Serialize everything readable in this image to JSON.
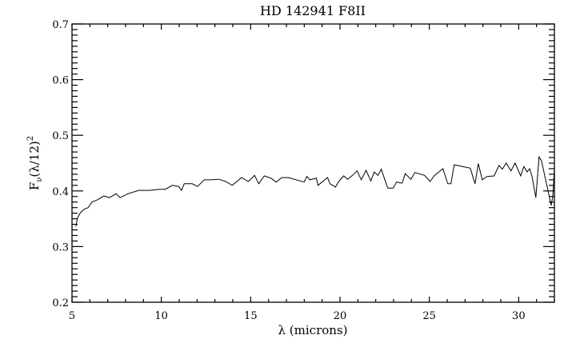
{
  "chart_data": {
    "type": "line",
    "title": "HD 142941 F8II",
    "xlabel": "λ (microns)",
    "ylabel": "Fν(λ/12)²",
    "ylabel_parts": {
      "base": "F",
      "sub": "ν",
      "mid": "(λ/12)",
      "sup": "2"
    },
    "xlim": [
      5,
      32
    ],
    "ylim": [
      0.2,
      0.7
    ],
    "xticks": [
      5,
      10,
      15,
      20,
      25,
      30
    ],
    "xtick_labels": [
      "5",
      "10",
      "15",
      "20",
      "25",
      "30"
    ],
    "yticks": [
      0.2,
      0.3,
      0.4,
      0.5,
      0.6,
      0.7
    ],
    "ytick_labels": [
      "0.2",
      "0.3",
      "0.4",
      "0.5",
      "0.6",
      "0.7"
    ],
    "grid": false,
    "line_color": "#000000",
    "x": [
      5.22,
      5.3,
      5.45,
      5.67,
      5.9,
      6.12,
      6.42,
      6.79,
      7.09,
      7.47,
      7.69,
      8.14,
      8.73,
      9.34,
      9.93,
      10.23,
      10.61,
      10.97,
      11.13,
      11.28,
      11.73,
      12.03,
      12.4,
      12.76,
      13.22,
      13.6,
      13.97,
      14.49,
      14.87,
      15.22,
      15.45,
      15.76,
      16.13,
      16.43,
      16.73,
      17.11,
      18.0,
      18.14,
      18.32,
      18.68,
      18.77,
      19.3,
      19.44,
      19.75,
      19.93,
      20.2,
      20.43,
      20.7,
      20.96,
      21.19,
      21.46,
      21.73,
      21.91,
      22.13,
      22.31,
      22.67,
      22.98,
      23.16,
      23.48,
      23.65,
      23.97,
      24.19,
      24.73,
      25.04,
      25.27,
      25.76,
      26.03,
      26.21,
      26.39,
      27.29,
      27.56,
      27.74,
      27.96,
      28.23,
      28.63,
      28.9,
      29.08,
      29.3,
      29.57,
      29.8,
      30.11,
      30.29,
      30.47,
      30.61,
      30.74,
      30.96,
      31.14,
      31.28,
      31.82,
      31.91,
      32.04
    ],
    "y": [
      0.336,
      0.351,
      0.36,
      0.367,
      0.37,
      0.38,
      0.384,
      0.391,
      0.388,
      0.395,
      0.388,
      0.395,
      0.401,
      0.401,
      0.403,
      0.403,
      0.41,
      0.408,
      0.401,
      0.413,
      0.413,
      0.408,
      0.42,
      0.42,
      0.421,
      0.417,
      0.41,
      0.424,
      0.417,
      0.428,
      0.413,
      0.427,
      0.423,
      0.416,
      0.424,
      0.424,
      0.416,
      0.426,
      0.42,
      0.423,
      0.41,
      0.424,
      0.413,
      0.407,
      0.417,
      0.427,
      0.421,
      0.428,
      0.436,
      0.42,
      0.437,
      0.418,
      0.434,
      0.428,
      0.439,
      0.405,
      0.405,
      0.416,
      0.414,
      0.431,
      0.421,
      0.433,
      0.428,
      0.417,
      0.427,
      0.44,
      0.413,
      0.413,
      0.447,
      0.441,
      0.413,
      0.449,
      0.42,
      0.426,
      0.427,
      0.446,
      0.439,
      0.45,
      0.436,
      0.45,
      0.427,
      0.444,
      0.434,
      0.44,
      0.427,
      0.388,
      0.461,
      0.454,
      0.374,
      0.391,
      0.439
    ]
  }
}
